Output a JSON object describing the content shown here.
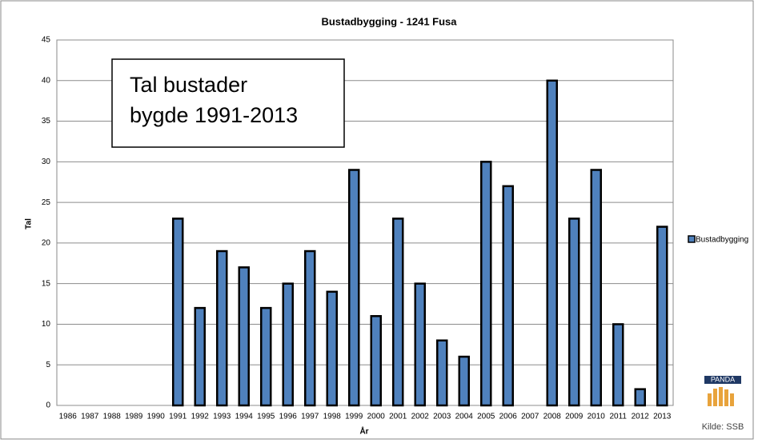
{
  "chart_data": {
    "type": "bar",
    "title": "Bustadbygging - 1241 Fusa",
    "annotation": [
      "Tal bustader",
      "bygde 1991-2013"
    ],
    "xlabel": "År",
    "ylabel": "Tal",
    "categories": [
      "1986",
      "1987",
      "1988",
      "1989",
      "1990",
      "1991",
      "1992",
      "1993",
      "1994",
      "1995",
      "1996",
      "1997",
      "1998",
      "1999",
      "2000",
      "2001",
      "2002",
      "2003",
      "2004",
      "2005",
      "2006",
      "2007",
      "2008",
      "2009",
      "2010",
      "2011",
      "2012",
      "2013"
    ],
    "series": [
      {
        "name": "Bustadbygging",
        "color": "#4f81bd",
        "values": [
          0,
          0,
          0,
          0,
          0,
          23,
          12,
          19,
          17,
          12,
          15,
          19,
          14,
          29,
          11,
          23,
          15,
          8,
          6,
          30,
          27,
          0,
          40,
          23,
          29,
          10,
          2,
          22
        ]
      }
    ],
    "ylim": [
      0,
      45
    ],
    "yticks": [
      0,
      5,
      10,
      15,
      20,
      25,
      30,
      35,
      40,
      45
    ],
    "grid": true,
    "legend": "right",
    "logo": "PANDA",
    "source": "Kilde: SSB"
  }
}
